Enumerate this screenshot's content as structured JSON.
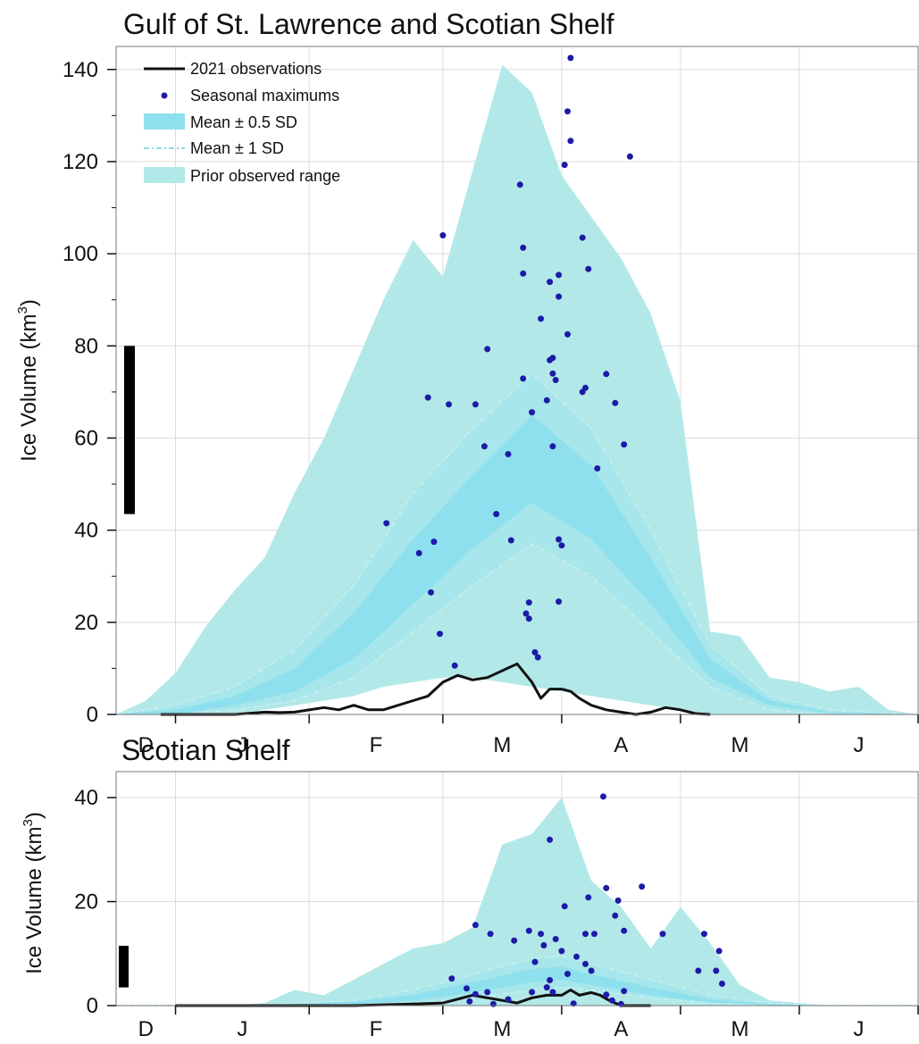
{
  "chart_data": [
    {
      "type": "area",
      "title": "Gulf of St. Lawrence and Scotian Shelf",
      "ylabel": "Ice Volume (km",
      "ylabel_sup": "3",
      "ylabel_suffix": ")",
      "ylim": [
        0,
        145
      ],
      "yticks": [
        0,
        20,
        40,
        60,
        80,
        100,
        120,
        140
      ],
      "xlim": [
        0,
        27
      ],
      "month_ticks": [
        {
          "label": "D",
          "x": 2
        },
        {
          "label": "J",
          "x": 6.5
        },
        {
          "label": "F",
          "x": 11
        },
        {
          "label": "M",
          "x": 15
        },
        {
          "label": "A",
          "x": 19
        },
        {
          "label": "M",
          "x": 23
        },
        {
          "label": "J",
          "x": 27
        }
      ],
      "grid": true,
      "legend": {
        "position": "top-left",
        "entries": [
          "2021 observations",
          "Seasonal maximums",
          "Mean ± 0.5 SD",
          "Mean ± 1 SD",
          "Prior observed range"
        ]
      },
      "colors": {
        "range": "#b2e9e8",
        "sd1": "#a7e6ea",
        "sd05": "#8ee0ee",
        "obs": "#111111",
        "maxima": "#1d1ba8",
        "grid": "#dcdcdc",
        "bar": "#000000"
      },
      "reference_bar": {
        "low": 43.5,
        "high": 80
      },
      "series": [
        {
          "name": "Prior observed range",
          "x": [
            0,
            1,
            2,
            3,
            4,
            5,
            6,
            7,
            8,
            9,
            10,
            11,
            12,
            13,
            14,
            15,
            16,
            17,
            18,
            19,
            20,
            21,
            22,
            23,
            24,
            25,
            26,
            27
          ],
          "upper": [
            0,
            3,
            9,
            19,
            27,
            34,
            48,
            60,
            75,
            90,
            103,
            95,
            118,
            141,
            135,
            117,
            108,
            99,
            87,
            68,
            18,
            17,
            8,
            7,
            5,
            6,
            1,
            0
          ],
          "lower": [
            0,
            0,
            0,
            0,
            0,
            1,
            2,
            3,
            4,
            6,
            7,
            8,
            8,
            7,
            6,
            5,
            4,
            3,
            2,
            1,
            0,
            0,
            0,
            0,
            0,
            0,
            0,
            0
          ]
        },
        {
          "name": "Mean ± 1 SD",
          "x": [
            0,
            2,
            4,
            6,
            8,
            10,
            12,
            14,
            16,
            18,
            20,
            22,
            24,
            27
          ],
          "upper": [
            0,
            2,
            6,
            14,
            28,
            48,
            62,
            74,
            62,
            40,
            15,
            4,
            1,
            0
          ],
          "lower": [
            0,
            0,
            1,
            3,
            8,
            18,
            28,
            37,
            30,
            18,
            6,
            1,
            0,
            0
          ]
        },
        {
          "name": "Mean ± 0.5 SD",
          "x": [
            0,
            2,
            4,
            6,
            8,
            10,
            12,
            14,
            16,
            18,
            20,
            22,
            24,
            27
          ],
          "upper": [
            0,
            1,
            4,
            10,
            22,
            38,
            52,
            65,
            54,
            34,
            12,
            3,
            0.5,
            0
          ],
          "lower": [
            0,
            0,
            2,
            5,
            12,
            24,
            36,
            46,
            38,
            24,
            8,
            2,
            0.3,
            0
          ]
        },
        {
          "name": "2021 observations",
          "x": [
            1.5,
            2,
            3,
            4,
            5,
            5.5,
            6,
            7,
            7.5,
            8,
            8.5,
            9,
            10,
            10.5,
            11,
            11.5,
            12,
            12.5,
            13,
            13.5,
            14,
            14.3,
            14.6,
            15,
            15.3,
            15.6,
            16,
            16.5,
            17,
            17.5,
            18,
            18.5,
            19,
            19.5,
            20
          ],
          "y": [
            0,
            0,
            0,
            0,
            0.5,
            0.4,
            0.5,
            1.5,
            1.0,
            2,
            1,
            1,
            3,
            4,
            7,
            8.5,
            7.5,
            8,
            9.5,
            11,
            7,
            3.5,
            5.5,
            5.5,
            5,
            3.5,
            2,
            1,
            0.5,
            0,
            0.5,
            1.5,
            1,
            0.2,
            0
          ]
        },
        {
          "name": "Seasonal maximums",
          "points": [
            [
              9.1,
              41.5
            ],
            [
              10.2,
              35
            ],
            [
              10.7,
              37.5
            ],
            [
              10.5,
              68.8
            ],
            [
              11.2,
              67.3
            ],
            [
              11.4,
              10.6
            ],
            [
              10.9,
              17.5
            ],
            [
              10.6,
              26.5
            ],
            [
              11.0,
              104.0
            ],
            [
              12.1,
              67.3
            ],
            [
              12.4,
              58.2
            ],
            [
              12.5,
              79.3
            ],
            [
              12.8,
              43.5
            ],
            [
              13.2,
              56.5
            ],
            [
              13.3,
              37.8
            ],
            [
              13.6,
              115.0
            ],
            [
              13.7,
              101.3
            ],
            [
              13.7,
              95.7
            ],
            [
              13.7,
              72.9
            ],
            [
              13.8,
              21.9
            ],
            [
              13.9,
              20.8
            ],
            [
              13.9,
              24.3
            ],
            [
              14.0,
              65.6
            ],
            [
              14.1,
              13.5
            ],
            [
              14.2,
              12.4
            ],
            [
              14.3,
              85.9
            ],
            [
              14.5,
              68.2
            ],
            [
              14.6,
              93.9
            ],
            [
              14.7,
              58.2
            ],
            [
              14.6,
              76.9
            ],
            [
              14.7,
              77.4
            ],
            [
              14.7,
              74.0
            ],
            [
              14.8,
              72.6
            ],
            [
              14.9,
              38.0
            ],
            [
              15.0,
              36.7
            ],
            [
              14.9,
              24.5
            ],
            [
              14.9,
              90.7
            ],
            [
              14.9,
              95.4
            ],
            [
              15.1,
              119.3
            ],
            [
              15.2,
              130.9
            ],
            [
              15.3,
              124.5
            ],
            [
              15.3,
              142.5
            ],
            [
              15.2,
              82.5
            ],
            [
              15.7,
              103.5
            ],
            [
              15.7,
              70.0
            ],
            [
              15.8,
              70.9
            ],
            [
              15.9,
              96.7
            ],
            [
              16.2,
              53.4
            ],
            [
              16.5,
              73.9
            ],
            [
              16.8,
              67.6
            ],
            [
              17.1,
              58.6
            ],
            [
              17.3,
              121.1
            ]
          ]
        }
      ]
    },
    {
      "type": "area",
      "title": "Scotian Shelf",
      "ylabel": "Ice Volume (km",
      "ylabel_sup": "3",
      "ylabel_suffix": ")",
      "ylim": [
        0,
        45
      ],
      "yticks": [
        0,
        20,
        40
      ],
      "xlim": [
        0,
        27
      ],
      "month_ticks": [
        {
          "label": "D",
          "x": 2
        },
        {
          "label": "J",
          "x": 6.5
        },
        {
          "label": "F",
          "x": 11
        },
        {
          "label": "M",
          "x": 15
        },
        {
          "label": "A",
          "x": 19
        },
        {
          "label": "M",
          "x": 23
        },
        {
          "label": "J",
          "x": 27
        }
      ],
      "grid": true,
      "reference_bar": {
        "low": 3.5,
        "high": 11.5
      },
      "series": [
        {
          "name": "Prior observed range",
          "x": [
            0,
            1,
            2,
            3,
            4,
            5,
            6,
            7,
            8,
            9,
            10,
            11,
            12,
            13,
            14,
            15,
            16,
            17,
            18,
            19,
            20,
            21,
            22,
            23,
            24,
            25,
            26,
            27
          ],
          "upper": [
            0,
            0,
            0,
            0,
            0,
            0.5,
            3,
            2,
            5,
            8,
            11,
            12,
            15,
            31,
            33,
            40,
            24,
            19,
            11,
            19,
            12,
            4,
            1,
            0.5,
            0,
            0,
            0,
            0
          ],
          "lower": [
            0,
            0,
            0,
            0,
            0,
            0,
            0,
            0,
            0,
            0,
            0,
            0,
            0,
            0,
            0,
            0,
            0,
            0,
            0,
            0,
            0,
            0,
            0,
            0,
            0,
            0,
            0,
            0
          ]
        },
        {
          "name": "Mean ± 1 SD",
          "x": [
            0,
            4,
            6,
            8,
            10,
            12,
            14,
            15,
            16,
            18,
            20,
            22,
            24,
            27
          ],
          "upper": [
            0,
            0,
            0.5,
            1,
            3,
            6,
            9,
            9.5,
            8,
            5,
            2,
            0.5,
            0,
            0
          ],
          "lower": [
            0,
            0,
            0,
            0,
            0.5,
            1.5,
            3,
            3.5,
            3,
            1.5,
            0.5,
            0,
            0,
            0
          ]
        },
        {
          "name": "Mean ± 0.5 SD",
          "x": [
            0,
            4,
            6,
            8,
            10,
            12,
            14,
            15,
            16,
            18,
            20,
            22,
            24,
            27
          ],
          "upper": [
            0,
            0,
            0.3,
            0.7,
            2,
            4.5,
            7,
            7.5,
            6,
            3.5,
            1.2,
            0.3,
            0,
            0
          ],
          "lower": [
            0,
            0,
            0,
            0.2,
            1,
            2.5,
            4.5,
            5,
            4,
            2,
            0.6,
            0.1,
            0,
            0
          ]
        },
        {
          "name": "2021 observations",
          "x": [
            2,
            4,
            6,
            8,
            10,
            11,
            12,
            12.5,
            13,
            13.5,
            14,
            14.5,
            15,
            15.3,
            15.6,
            16,
            16.3,
            16.6,
            17,
            18
          ],
          "y": [
            0,
            0,
            0,
            0,
            0.3,
            0.5,
            2,
            1.5,
            1,
            0.5,
            1.5,
            2,
            2,
            3,
            2,
            2.5,
            2,
            1,
            0,
            0
          ]
        },
        {
          "name": "Seasonal maximums",
          "points": [
            [
              11.3,
              5.2
            ],
            [
              11.8,
              3.3
            ],
            [
              12.1,
              2.2
            ],
            [
              12.5,
              2.6
            ],
            [
              12.1,
              15.5
            ],
            [
              12.6,
              13.8
            ],
            [
              11.9,
              0.8
            ],
            [
              12.7,
              0.3
            ],
            [
              13.2,
              1.2
            ],
            [
              13.4,
              12.5
            ],
            [
              13.9,
              14.4
            ],
            [
              14.0,
              2.6
            ],
            [
              14.1,
              8.4
            ],
            [
              14.3,
              13.8
            ],
            [
              14.4,
              11.6
            ],
            [
              14.5,
              3.5
            ],
            [
              14.6,
              4.9
            ],
            [
              14.6,
              31.9
            ],
            [
              14.7,
              2.6
            ],
            [
              14.8,
              12.8
            ],
            [
              15.0,
              10.5
            ],
            [
              15.1,
              19.1
            ],
            [
              15.2,
              6.1
            ],
            [
              15.4,
              0.4
            ],
            [
              15.5,
              9.4
            ],
            [
              15.8,
              8.0
            ],
            [
              15.8,
              13.8
            ],
            [
              15.9,
              20.8
            ],
            [
              16.0,
              6.7
            ],
            [
              16.1,
              13.8
            ],
            [
              16.4,
              40.2
            ],
            [
              16.5,
              22.6
            ],
            [
              16.5,
              2.1
            ],
            [
              16.7,
              1.0
            ],
            [
              16.8,
              17.3
            ],
            [
              16.9,
              20.2
            ],
            [
              17.0,
              0.3
            ],
            [
              17.1,
              14.4
            ],
            [
              17.1,
              2.8
            ],
            [
              17.7,
              22.9
            ],
            [
              18.4,
              13.8
            ],
            [
              19.6,
              6.7
            ],
            [
              19.8,
              13.8
            ],
            [
              20.2,
              6.7
            ],
            [
              20.3,
              10.5
            ],
            [
              20.4,
              4.2
            ]
          ]
        }
      ]
    }
  ]
}
